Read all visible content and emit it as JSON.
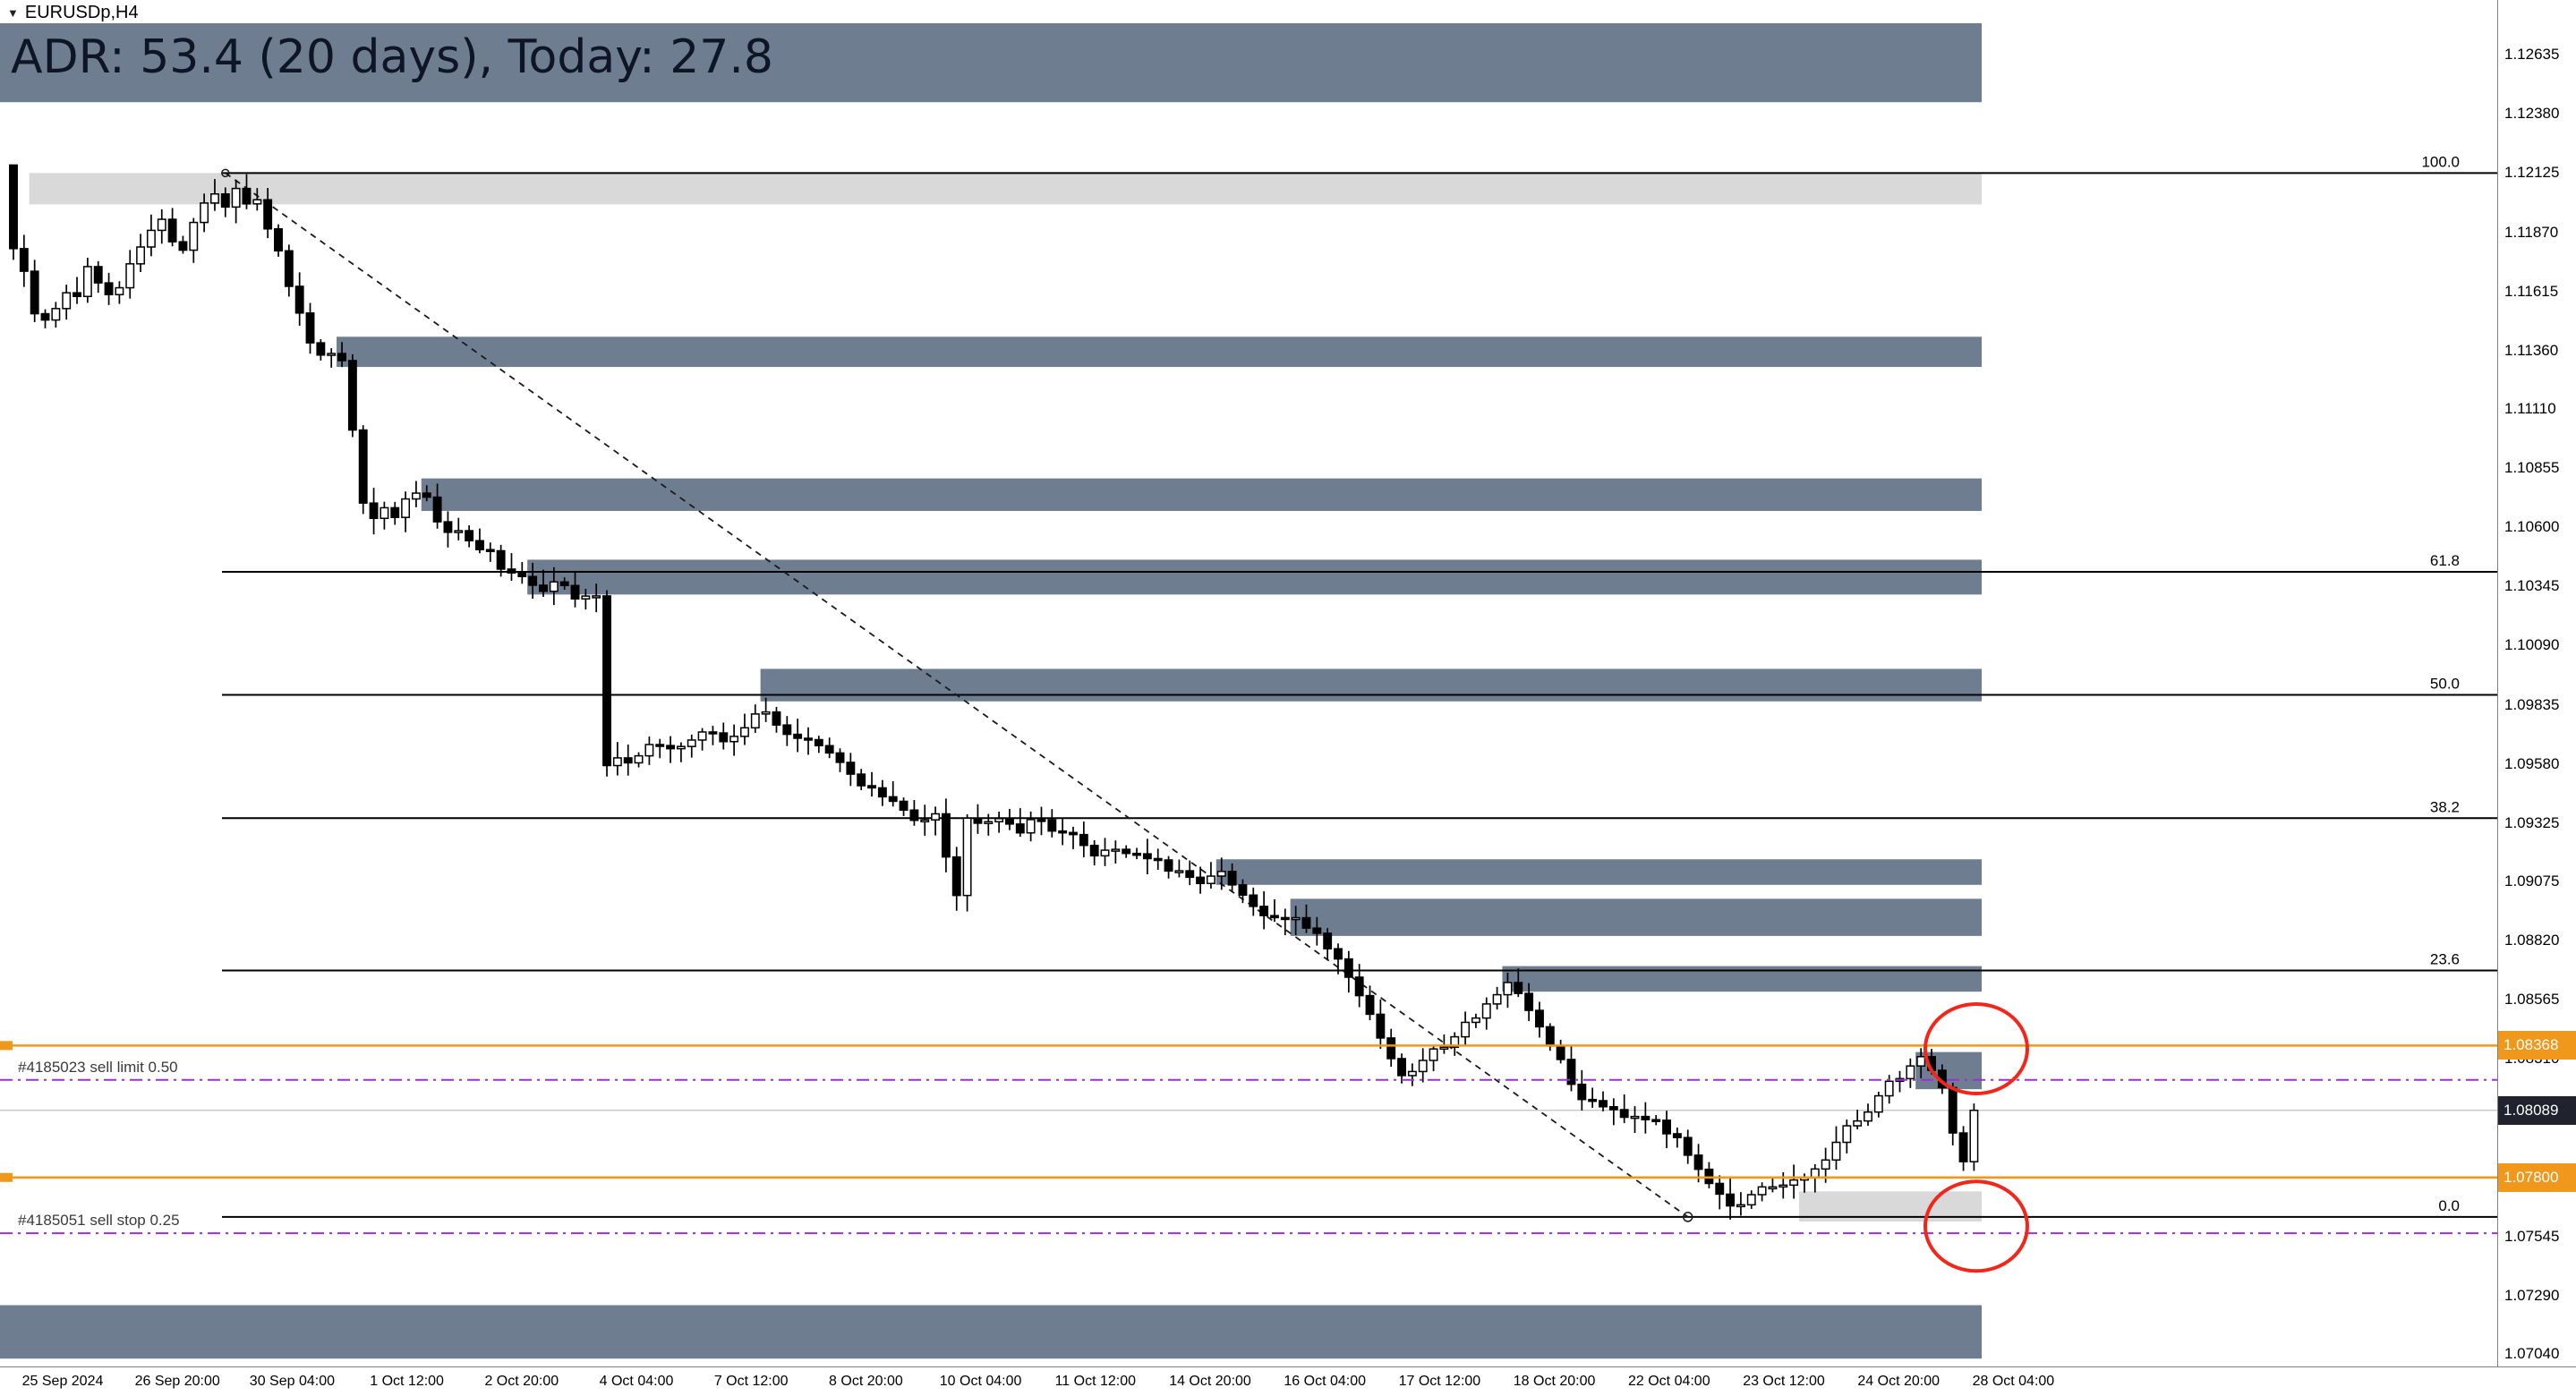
{
  "window": {
    "dropdown_icon": "▼",
    "symbol_label": "EURUSDp,H4"
  },
  "adr": {
    "text": "ADR: 53.4 (20 days), Today: 27.8"
  },
  "colors": {
    "background": "#ffffff",
    "zone_slate": "#6e7e90",
    "zone_light": "#d9d9d9",
    "candle_bear": "#000000",
    "candle_bull": "#ffffff",
    "candle_outline": "#000000",
    "fib_line": "#000000",
    "trendline": "#1a1a1a",
    "orange_line": "#f0981b",
    "purple_line": "#9a30d6",
    "red_circle": "#f3261c",
    "current_price_line": "#c0c0c0",
    "badge_dark": "#20222e",
    "adr_band": "#6e7e90"
  },
  "chart_data": {
    "type": "candlestick",
    "symbol": "EURUSDp",
    "timeframe": "H4",
    "price_axis": {
      "ticks": [
        "1.12635",
        "1.12380",
        "1.12125",
        "1.11870",
        "1.11615",
        "1.11360",
        "1.11110",
        "1.10855",
        "1.10600",
        "1.10345",
        "1.10090",
        "1.09835",
        "1.09580",
        "1.09325",
        "1.09075",
        "1.08820",
        "1.08565",
        "1.08310",
        "1.08055",
        "1.07800",
        "1.07545",
        "1.07290",
        "1.07040"
      ]
    },
    "time_axis": {
      "labels": [
        "25 Sep 2024",
        "26 Sep 20:00",
        "30 Sep 04:00",
        "1 Oct 12:00",
        "2 Oct 20:00",
        "4 Oct 04:00",
        "7 Oct 12:00",
        "8 Oct 20:00",
        "10 Oct 04:00",
        "11 Oct 12:00",
        "14 Oct 20:00",
        "16 Oct 04:00",
        "17 Oct 12:00",
        "18 Oct 20:00",
        "22 Oct 04:00",
        "23 Oct 12:00",
        "24 Oct 20:00",
        "28 Oct 04:00"
      ]
    },
    "current_price": {
      "badge": "1.08089",
      "price": 1.08089
    },
    "h_lines": [
      {
        "badge": "1.08368",
        "price": 1.08368
      },
      {
        "badge": "1.07800",
        "price": 1.078
      }
    ],
    "orders": [
      {
        "label": "#4185023 sell limit 0.50",
        "price": 1.0822
      },
      {
        "label": "#4185051 sell stop 0.25",
        "price": 1.0756
      }
    ],
    "fibonacci": [
      {
        "label": "100.0",
        "price": 1.12125
      },
      {
        "label": "61.8",
        "price": 1.10408
      },
      {
        "label": "50.0",
        "price": 1.09878
      },
      {
        "label": "38.2",
        "price": 1.09347
      },
      {
        "label": "23.6",
        "price": 1.08691
      },
      {
        "label": "0.0",
        "price": 1.0763
      }
    ],
    "trendline": {
      "start_index": 20,
      "start_price": 1.12125,
      "end_index": 158,
      "end_price": 1.0763
    },
    "zones": [
      {
        "kind": "slate",
        "price_top": 1.1277,
        "price_bottom": 1.1243,
        "start_index": 0
      },
      {
        "kind": "slate",
        "price_top": 1.0725,
        "price_bottom": 1.0702,
        "start_index": 0
      },
      {
        "kind": "light",
        "price_top": 1.12125,
        "price_bottom": 1.1199,
        "start_index": 2
      },
      {
        "kind": "slate",
        "price_top": 1.1142,
        "price_bottom": 1.1129,
        "start_index": 31
      },
      {
        "kind": "slate",
        "price_top": 1.1081,
        "price_bottom": 1.1067,
        "start_index": 39
      },
      {
        "kind": "slate",
        "price_top": 1.1046,
        "price_bottom": 1.1031,
        "start_index": 49
      },
      {
        "kind": "slate",
        "price_top": 1.0999,
        "price_bottom": 1.0985,
        "start_index": 71
      },
      {
        "kind": "slate",
        "price_top": 1.0917,
        "price_bottom": 1.0906,
        "start_index": 114
      },
      {
        "kind": "slate",
        "price_top": 1.09,
        "price_bottom": 1.0884,
        "start_index": 121
      },
      {
        "kind": "slate",
        "price_top": 1.0871,
        "price_bottom": 1.086,
        "start_index": 141
      },
      {
        "kind": "light",
        "price_top": 1.0774,
        "price_bottom": 1.0761,
        "start_index": 169
      },
      {
        "kind": "slate",
        "price_top": 1.0834,
        "price_bottom": 1.0818,
        "start_index": 180
      }
    ],
    "annotations": [
      {
        "shape": "ellipse",
        "center_price": 1.08354,
        "rx": 57,
        "ry": 50
      },
      {
        "shape": "ellipse",
        "center_price": 1.0759,
        "rx": 57,
        "ry": 50
      }
    ],
    "bar_count": 186,
    "last_close": 1.08089,
    "close_path_anchors": [
      [
        0,
        1.118
      ],
      [
        1,
        1.1168
      ],
      [
        2,
        1.1152
      ],
      [
        3,
        1.1148
      ],
      [
        4,
        1.1155
      ],
      [
        5,
        1.1162
      ],
      [
        6,
        1.1158
      ],
      [
        7,
        1.117
      ],
      [
        8,
        1.1165
      ],
      [
        9,
        1.1158
      ],
      [
        10,
        1.1162
      ],
      [
        11,
        1.1172
      ],
      [
        12,
        1.118
      ],
      [
        13,
        1.1186
      ],
      [
        14,
        1.1194
      ],
      [
        15,
        1.1185
      ],
      [
        16,
        1.1178
      ],
      [
        17,
        1.1192
      ],
      [
        18,
        1.12
      ],
      [
        19,
        1.1205
      ],
      [
        20,
        1.1198
      ],
      [
        21,
        1.1205
      ],
      [
        22,
        1.1197
      ],
      [
        23,
        1.1202
      ],
      [
        24,
        1.119
      ],
      [
        25,
        1.118
      ],
      [
        26,
        1.1165
      ],
      [
        27,
        1.115
      ],
      [
        28,
        1.114
      ],
      [
        29,
        1.1132
      ],
      [
        30,
        1.1136
      ],
      [
        31,
        1.113
      ],
      [
        32,
        1.11
      ],
      [
        33,
        1.1072
      ],
      [
        34,
        1.1062
      ],
      [
        35,
        1.1068
      ],
      [
        36,
        1.1062
      ],
      [
        37,
        1.107
      ],
      [
        38,
        1.1074
      ],
      [
        39,
        1.1072
      ],
      [
        40,
        1.1064
      ],
      [
        41,
        1.106
      ],
      [
        42,
        1.1058
      ],
      [
        43,
        1.1053
      ],
      [
        44,
        1.105
      ],
      [
        45,
        1.1048
      ],
      [
        46,
        1.1044
      ],
      [
        47,
        1.1042
      ],
      [
        48,
        1.1038
      ],
      [
        49,
        1.1036
      ],
      [
        50,
        1.1032
      ],
      [
        51,
        1.1035
      ],
      [
        52,
        1.1033
      ],
      [
        53,
        1.103
      ],
      [
        54,
        1.1032
      ],
      [
        55,
        1.1031
      ],
      [
        56,
        1.0956
      ],
      [
        57,
        1.096
      ],
      [
        58,
        1.0958
      ],
      [
        60,
        1.0968
      ],
      [
        62,
        1.0963
      ],
      [
        65,
        1.0972
      ],
      [
        67,
        1.0968
      ],
      [
        69,
        1.0975
      ],
      [
        71,
        1.098
      ],
      [
        73,
        1.0972
      ],
      [
        76,
        1.0965
      ],
      [
        78,
        1.0958
      ],
      [
        80,
        1.095
      ],
      [
        82,
        1.0944
      ],
      [
        85,
        1.0934
      ],
      [
        87,
        1.0938
      ],
      [
        89,
        1.0902
      ],
      [
        90,
        1.0934
      ],
      [
        93,
        1.0936
      ],
      [
        95,
        1.093
      ],
      [
        97,
        1.0934
      ],
      [
        100,
        1.0926
      ],
      [
        102,
        1.092
      ],
      [
        104,
        1.0922
      ],
      [
        107,
        1.0918
      ],
      [
        109,
        1.0912
      ],
      [
        111,
        1.0908
      ],
      [
        114,
        1.091
      ],
      [
        117,
        1.0896
      ],
      [
        119,
        1.089
      ],
      [
        121,
        1.0893
      ],
      [
        124,
        1.088
      ],
      [
        126,
        1.0868
      ],
      [
        128,
        1.085
      ],
      [
        130,
        1.0832
      ],
      [
        131,
        1.0822
      ],
      [
        133,
        1.083
      ],
      [
        135,
        1.0838
      ],
      [
        137,
        1.0846
      ],
      [
        139,
        1.0855
      ],
      [
        141,
        1.0862
      ],
      [
        143,
        1.0852
      ],
      [
        145,
        1.0838
      ],
      [
        147,
        1.082
      ],
      [
        148,
        1.0815
      ],
      [
        150,
        1.0812
      ],
      [
        152,
        1.0808
      ],
      [
        155,
        1.0806
      ],
      [
        157,
        1.0795
      ],
      [
        159,
        1.0785
      ],
      [
        161,
        1.0774
      ],
      [
        162,
        1.0769
      ],
      [
        163,
        1.0767
      ],
      [
        165,
        1.0774
      ],
      [
        167,
        1.0776
      ],
      [
        169,
        1.078
      ],
      [
        171,
        1.0788
      ],
      [
        173,
        1.08
      ],
      [
        175,
        1.081
      ],
      [
        177,
        1.082
      ],
      [
        179,
        1.0828
      ],
      [
        180,
        1.0832
      ],
      [
        182,
        1.082
      ],
      [
        183,
        1.08
      ],
      [
        184,
        1.0786
      ],
      [
        185,
        1.08089
      ]
    ]
  }
}
